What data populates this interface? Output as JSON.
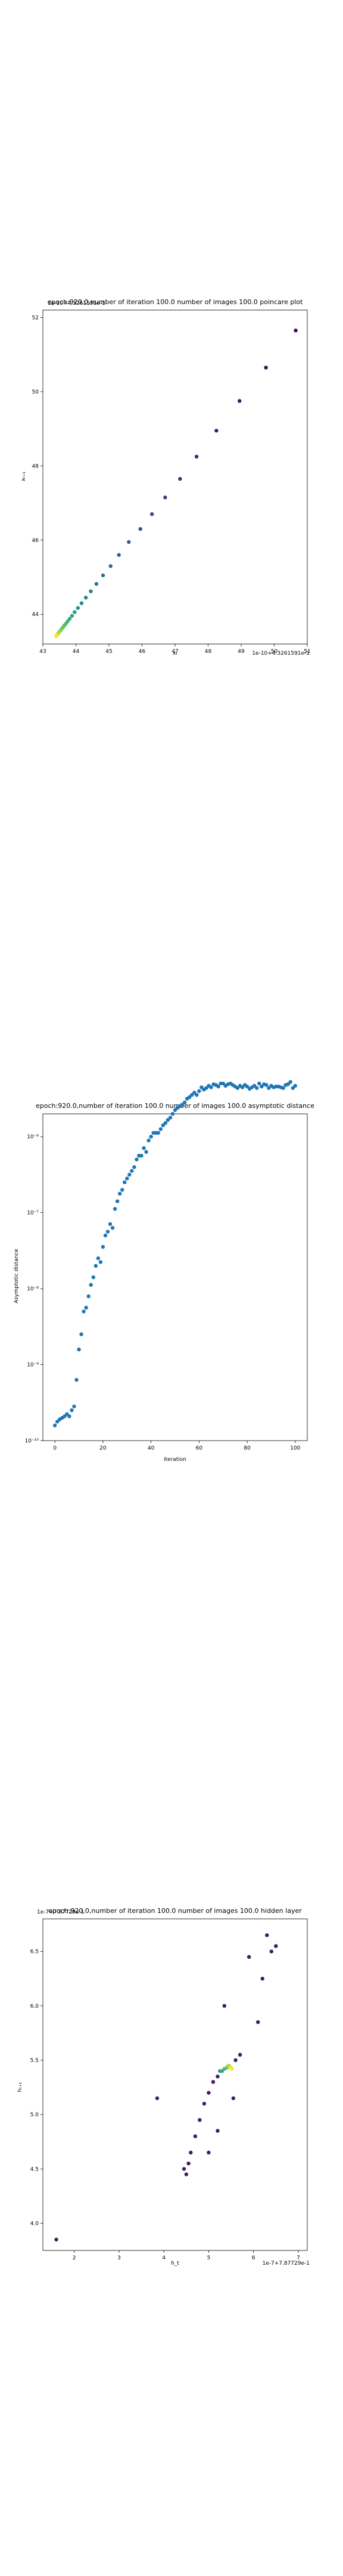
{
  "chart_data": [
    {
      "type": "scatter",
      "title": "epoch:920.0,number of iteration 100.0 number of images 100.0 poincare plot",
      "overlay_text": "1e-10+4.3261591e-1",
      "xlabel": "xₜ",
      "ylabel": "xₜ₊₁",
      "offset_text": "1e-10+4.3261591e-1",
      "xlim": [
        43.0,
        51.0
      ],
      "ylim": [
        43.2,
        52.2
      ],
      "xticks": [
        43,
        44,
        45,
        46,
        47,
        48,
        49,
        50,
        51
      ],
      "yticks": [
        44,
        46,
        48,
        50,
        52
      ],
      "colormap": "viridis",
      "x": [
        50.65,
        49.75,
        48.95,
        48.25,
        47.65,
        47.15,
        46.7,
        46.3,
        45.95,
        45.6,
        45.3,
        45.05,
        44.82,
        44.62,
        44.45,
        44.3,
        44.17,
        44.06,
        43.96,
        43.88,
        43.81,
        43.75,
        43.7,
        43.65,
        43.61,
        43.57,
        43.54,
        43.51,
        43.48,
        43.46,
        43.44,
        43.42,
        43.41,
        43.4
      ],
      "y": [
        51.65,
        50.65,
        49.75,
        48.95,
        48.25,
        47.65,
        47.15,
        46.7,
        46.3,
        45.95,
        45.6,
        45.3,
        45.05,
        44.82,
        44.62,
        44.45,
        44.3,
        44.17,
        44.06,
        43.96,
        43.88,
        43.81,
        43.75,
        43.7,
        43.65,
        43.61,
        43.57,
        43.54,
        43.51,
        43.48,
        43.46,
        43.44,
        43.42,
        43.41
      ]
    },
    {
      "type": "scatter",
      "title": "epoch:920.0,number of iteration 100.0  number of images 100.0 asymptotic distance",
      "xlabel": "iteration",
      "ylabel": "Asymptotic distance",
      "xlim": [
        -5,
        105
      ],
      "ylim_log10": [
        -10,
        -5.7
      ],
      "yscale": "log",
      "xticks": [
        0,
        20,
        40,
        60,
        80,
        100
      ],
      "yticks": [
        "10⁻¹⁰",
        "10⁻⁹",
        "10⁻⁸",
        "10⁻⁷",
        "10⁻⁶"
      ],
      "color": "#1f77b4",
      "log10_values": [
        -9.8,
        -9.75,
        -9.72,
        -9.7,
        -9.68,
        -9.65,
        -9.68,
        -9.6,
        -9.55,
        -9.2,
        -8.8,
        -8.6,
        -8.3,
        -8.25,
        -8.1,
        -7.95,
        -7.85,
        -7.7,
        -7.6,
        -7.65,
        -7.45,
        -7.3,
        -7.25,
        -7.15,
        -7.2,
        -6.95,
        -6.85,
        -6.75,
        -6.7,
        -6.6,
        -6.55,
        -6.5,
        -6.45,
        -6.4,
        -6.3,
        -6.25,
        -6.25,
        -6.15,
        -6.2,
        -6.05,
        -6.0,
        -5.95,
        -5.95,
        -5.95,
        -5.9,
        -5.85,
        -5.82,
        -5.78,
        -5.75,
        -5.7,
        -5.65,
        -5.62,
        -5.6,
        -5.58,
        -5.55,
        -5.5,
        -5.48,
        -5.45,
        -5.42,
        -5.45,
        -5.4,
        -5.35,
        -5.38,
        -5.36,
        -5.33,
        -5.35,
        -5.31,
        -5.32,
        -5.34,
        -5.3,
        -5.3,
        -5.33,
        -5.31,
        -5.3,
        -5.32,
        -5.34,
        -5.36,
        -5.33,
        -5.35,
        -5.32,
        -5.34,
        -5.37,
        -5.35,
        -5.33,
        -5.36,
        -5.3,
        -5.34,
        -5.31,
        -5.32,
        -5.36,
        -5.33,
        -5.35,
        -5.34,
        -5.34,
        -5.35,
        -5.36,
        -5.32,
        -5.31,
        -5.28,
        -5.36,
        -5.33
      ]
    },
    {
      "type": "scatter",
      "title": "epoch:920.0,number of iteration 100.0  number of images 100.0 hidden layer",
      "overlay_text": "1e-7+7.87729e-1",
      "xlabel": "h_t",
      "ylabel": "hₜ₊₁",
      "offset_text": "1e-7+7.87729e-1",
      "xlim": [
        1.3,
        7.2
      ],
      "ylim": [
        3.75,
        6.8
      ],
      "xticks": [
        2,
        3,
        4,
        5,
        6,
        7
      ],
      "yticks": [
        4.0,
        4.5,
        5.0,
        5.5,
        6.0,
        6.5
      ],
      "colormap": "viridis",
      "x": [
        1.6,
        3.85,
        4.45,
        4.5,
        4.55,
        4.6,
        4.7,
        4.8,
        4.9,
        5.0,
        5.1,
        5.2,
        5.25,
        5.3,
        5.35,
        5.4,
        5.42,
        5.45,
        5.48,
        5.5,
        5.52,
        5.55,
        5.6,
        5.7,
        5.9,
        6.1,
        6.2,
        6.3,
        6.4,
        6.5,
        5.35,
        5.2,
        5.0
      ],
      "y": [
        3.85,
        5.15,
        4.5,
        4.45,
        4.55,
        4.65,
        4.8,
        4.95,
        5.1,
        5.2,
        5.3,
        5.35,
        5.4,
        5.4,
        5.42,
        5.43,
        5.44,
        5.45,
        5.44,
        5.43,
        5.42,
        5.15,
        5.5,
        5.55,
        6.45,
        5.85,
        6.25,
        6.65,
        6.5,
        6.55,
        6.0,
        4.85,
        4.65
      ]
    }
  ]
}
